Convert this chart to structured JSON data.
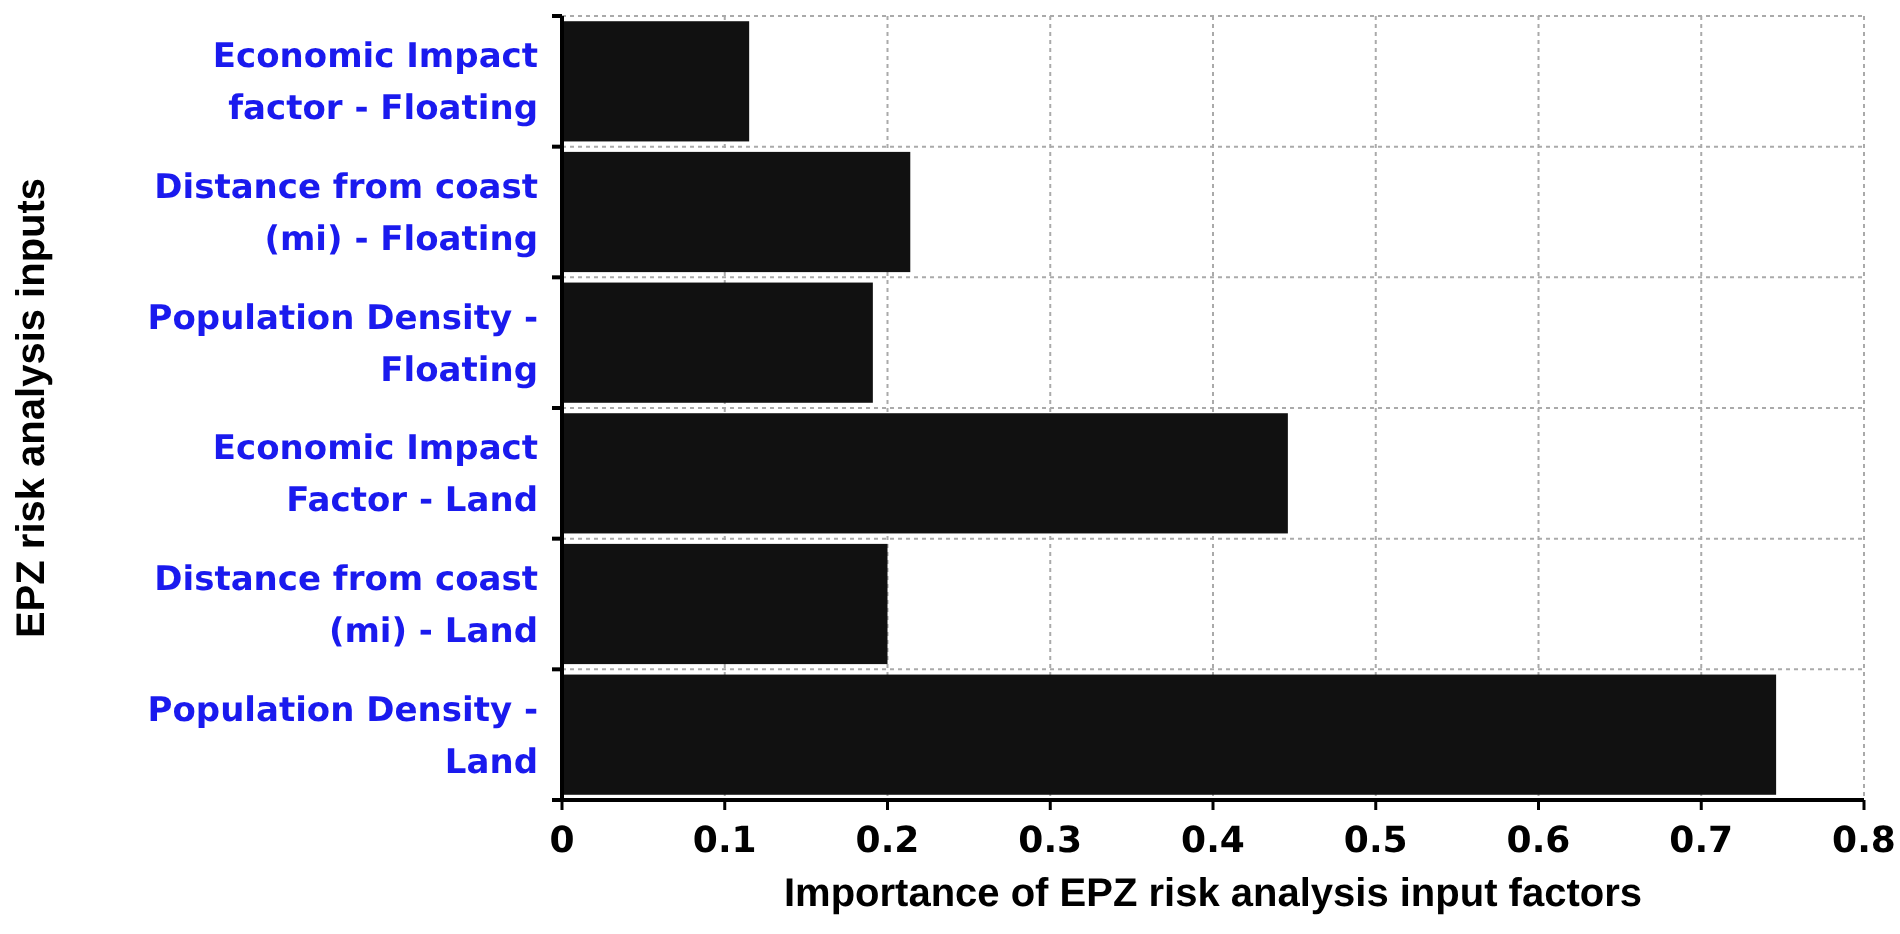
{
  "chart_data": {
    "type": "bar",
    "orientation": "horizontal",
    "xlabel": "Importance of EPZ risk analysis input factors",
    "ylabel": "EPZ risk analysis inputs",
    "categories": [
      "Economic Impact factor - Floating",
      "Distance from coast (mi) - Floating",
      "Population Density - Floating",
      "Economic Impact Factor - Land",
      "Distance from coast (mi) - Land",
      "Population Density - Land"
    ],
    "values": [
      0.115,
      0.214,
      0.191,
      0.446,
      0.2,
      0.746
    ],
    "color": "#111111",
    "xlim": [
      0,
      0.8
    ],
    "xticks": [
      0,
      0.1,
      0.2,
      0.3,
      0.4,
      0.5,
      0.6,
      0.7,
      0.8
    ],
    "grid": true
  }
}
